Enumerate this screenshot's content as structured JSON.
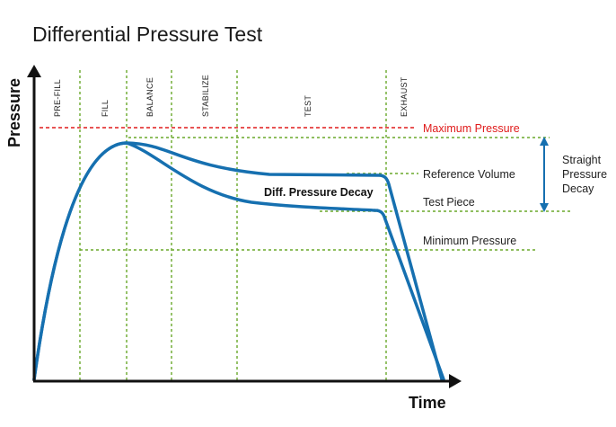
{
  "title": "Differential Pressure Test",
  "y_axis_label": "Pressure",
  "x_axis_label": "Time",
  "phases": [
    "PRE-FILL",
    "FILL",
    "BALANCE",
    "STABILIZE",
    "TEST",
    "EXHAUST"
  ],
  "labels": {
    "maximum_pressure": "Maximum Pressure",
    "reference_volume": "Reference Volume",
    "test_piece": "Test Piece",
    "minimum_pressure": "Minimum Pressure",
    "diff_pressure_decay": "Diff. Pressure Decay",
    "straight_line1": "Straight",
    "straight_line2": "Pressure",
    "straight_line3": "Decay"
  },
  "colors": {
    "curve": "#1670b0",
    "guide": "#6aa82a",
    "max_pressure": "#e01b1b"
  }
}
